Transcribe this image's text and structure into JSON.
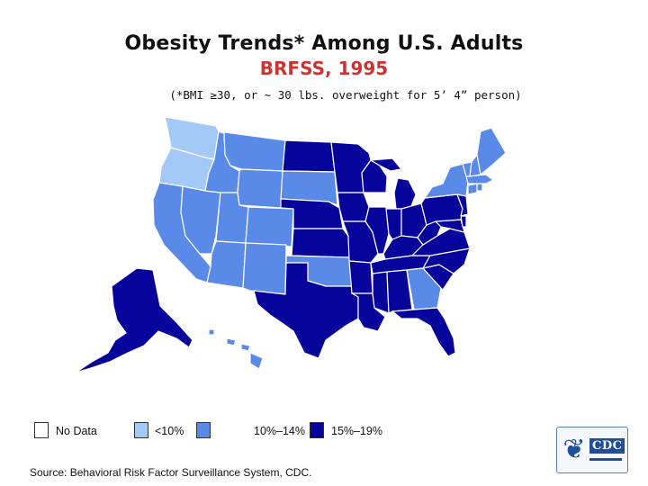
{
  "title": "Obesity Trends* Among U.S. Adults",
  "subtitle": "BRFSS, 1995",
  "note": "(*BMI ≥30, or ~ 30 lbs. overweight for 5’ 4” person)",
  "colors": {
    "no_data": "#ffffff",
    "lt10": "#a4c8f7",
    "10_14": "#5a8ae8",
    "15_19": "#06049a",
    "border": "#ffffff",
    "title": "#111111",
    "subtitle": "#cc3333"
  },
  "legend": {
    "items": [
      {
        "key": "no_data",
        "label": "No Data"
      },
      {
        "key": "lt10",
        "label": "<10%"
      },
      {
        "key": "10_14",
        "label": "10%–14%"
      },
      {
        "key": "15_19",
        "label": "15%–19%"
      }
    ]
  },
  "states": {
    "WA": "lt10",
    "OR": "lt10",
    "CA": "10_14",
    "NV": "10_14",
    "ID": "10_14",
    "MT": "10_14",
    "WY": "10_14",
    "UT": "10_14",
    "CO": "10_14",
    "AZ": "10_14",
    "NM": "10_14",
    "ND": "15_19",
    "SD": "10_14",
    "NE": "15_19",
    "KS": "15_19",
    "OK": "10_14",
    "TX": "15_19",
    "MN": "15_19",
    "IA": "15_19",
    "MO": "15_19",
    "AR": "15_19",
    "LA": "15_19",
    "WI": "15_19",
    "IL": "15_19",
    "MI": "15_19",
    "IN": "15_19",
    "OH": "15_19",
    "KY": "15_19",
    "TN": "15_19",
    "MS": "15_19",
    "AL": "15_19",
    "GA": "10_14",
    "FL": "15_19",
    "SC": "15_19",
    "NC": "15_19",
    "VA": "15_19",
    "WV": "15_19",
    "MD": "15_19",
    "DE": "15_19",
    "PA": "15_19",
    "NJ": "15_19",
    "NY": "10_14",
    "CT": "10_14",
    "RI": "10_14",
    "MA": "10_14",
    "VT": "10_14",
    "NH": "10_14",
    "ME": "10_14",
    "AK": "15_19",
    "HI": "10_14"
  },
  "source": "Source: Behavioral Risk Factor Surveillance System, CDC.",
  "logo": {
    "text": "CDC",
    "icon": "hhs-eagle-icon"
  }
}
